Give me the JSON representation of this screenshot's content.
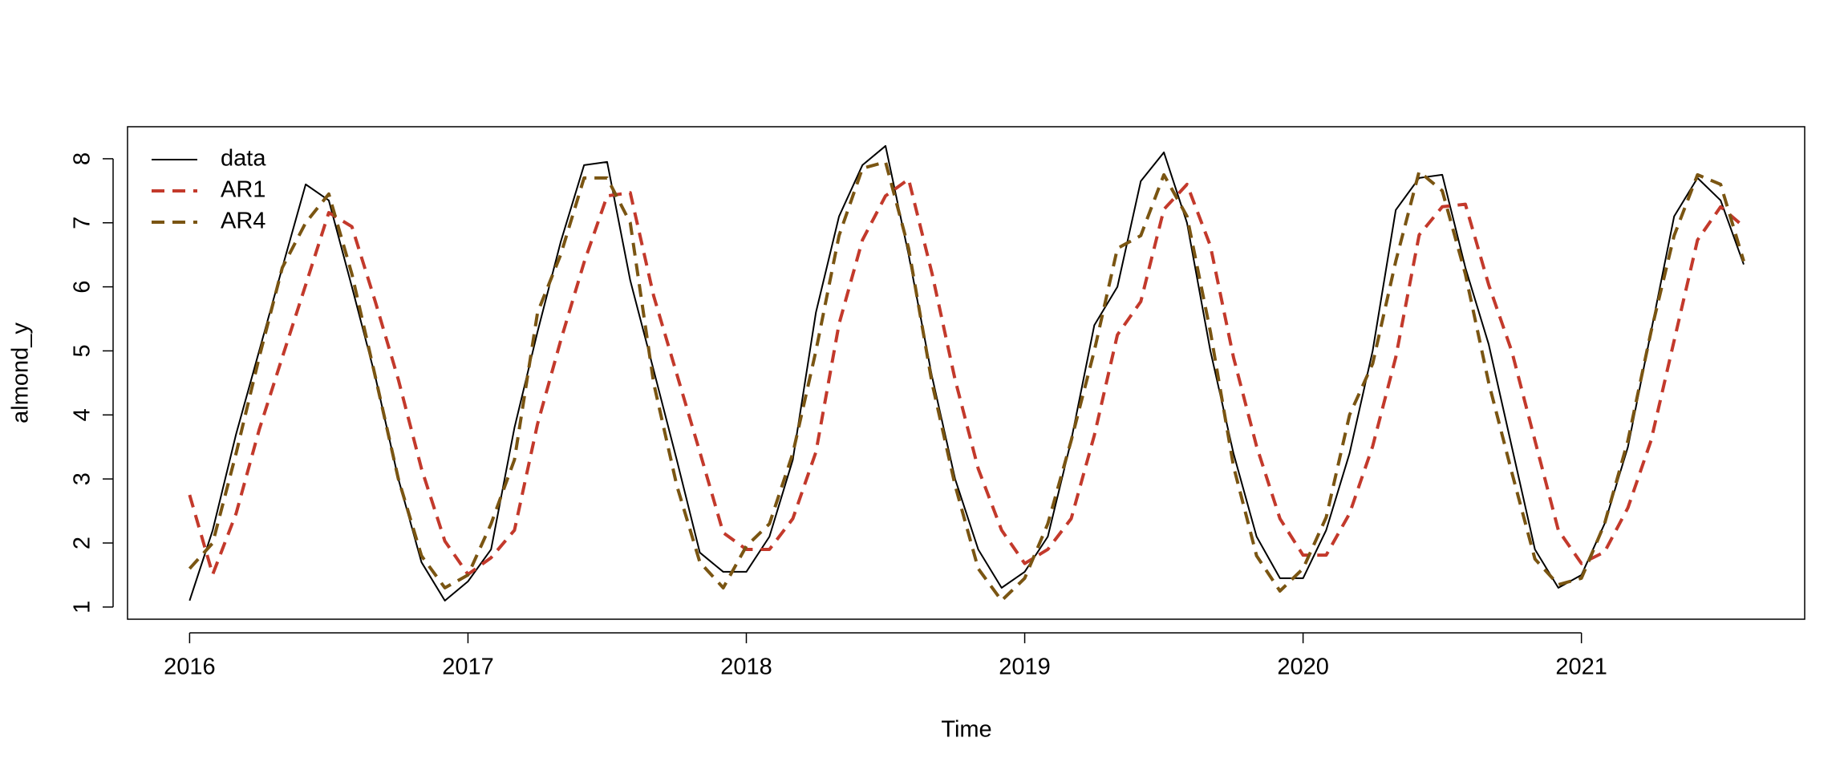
{
  "chart_data": {
    "type": "line",
    "xlabel": "Time",
    "ylabel": "almond_y",
    "x": [
      2016,
      2016.083,
      2016.167,
      2016.25,
      2016.333,
      2016.417,
      2016.5,
      2016.583,
      2016.667,
      2016.75,
      2016.833,
      2016.917,
      2017,
      2017.083,
      2017.167,
      2017.25,
      2017.333,
      2017.417,
      2017.5,
      2017.583,
      2017.667,
      2017.75,
      2017.833,
      2017.917,
      2018,
      2018.083,
      2018.167,
      2018.25,
      2018.333,
      2018.417,
      2018.5,
      2018.583,
      2018.667,
      2018.75,
      2018.833,
      2018.917,
      2019,
      2019.083,
      2019.167,
      2019.25,
      2019.333,
      2019.417,
      2019.5,
      2019.583,
      2019.667,
      2019.75,
      2019.833,
      2019.917,
      2020,
      2020.083,
      2020.167,
      2020.25,
      2020.333,
      2020.417,
      2020.5,
      2020.583,
      2020.667,
      2020.75,
      2020.833,
      2020.917,
      2021,
      2021.083,
      2021.167,
      2021.25,
      2021.333,
      2021.417,
      2021.5,
      2021.583
    ],
    "series": [
      {
        "name": "data",
        "color": "#000000",
        "dash": false,
        "values": [
          1.1,
          2.2,
          3.7,
          5.0,
          6.3,
          7.6,
          7.35,
          6.0,
          4.6,
          3.0,
          1.7,
          1.1,
          1.4,
          1.9,
          3.8,
          5.3,
          6.7,
          7.9,
          7.95,
          6.1,
          4.7,
          3.3,
          1.85,
          1.55,
          1.55,
          2.1,
          3.3,
          5.6,
          7.1,
          7.9,
          8.2,
          6.5,
          4.6,
          3.0,
          1.9,
          1.3,
          1.55,
          2.1,
          3.6,
          5.4,
          6.0,
          7.65,
          8.1,
          7.0,
          5.0,
          3.4,
          2.1,
          1.45,
          1.45,
          2.2,
          3.4,
          5.0,
          7.2,
          7.7,
          7.75,
          6.3,
          5.1,
          3.5,
          1.9,
          1.3,
          1.5,
          2.3,
          3.5,
          5.3,
          7.1,
          7.7,
          7.35,
          6.35
        ]
      },
      {
        "name": "AR1",
        "color": "#c3392b",
        "dash": true,
        "values": [
          2.75,
          1.51,
          2.46,
          3.77,
          4.9,
          6.03,
          7.16,
          6.94,
          5.77,
          4.55,
          3.16,
          2.03,
          1.51,
          1.77,
          2.2,
          3.86,
          5.16,
          6.38,
          7.42,
          7.47,
          5.86,
          4.64,
          3.42,
          2.16,
          1.9,
          1.9,
          2.38,
          3.42,
          5.42,
          6.73,
          7.42,
          7.68,
          6.21,
          4.55,
          3.16,
          2.2,
          1.68,
          1.9,
          2.38,
          3.68,
          5.25,
          5.77,
          7.21,
          7.6,
          6.64,
          4.9,
          3.51,
          2.38,
          1.81,
          1.81,
          2.46,
          3.51,
          4.9,
          6.81,
          7.25,
          7.29,
          6.03,
          4.99,
          3.6,
          2.2,
          1.68,
          1.86,
          2.55,
          3.6,
          5.16,
          6.73,
          7.25,
          6.94
        ]
      },
      {
        "name": "AR4",
        "color": "#7a5512",
        "dash": true,
        "values": [
          1.6,
          2.0,
          3.4,
          4.9,
          6.3,
          7.0,
          7.45,
          6.2,
          4.6,
          3.0,
          1.8,
          1.3,
          1.5,
          2.3,
          3.3,
          5.6,
          6.5,
          7.7,
          7.7,
          7.0,
          4.5,
          2.9,
          1.7,
          1.3,
          1.95,
          2.3,
          3.4,
          5.0,
          6.8,
          7.85,
          7.95,
          6.6,
          4.5,
          2.9,
          1.6,
          1.1,
          1.45,
          2.3,
          3.6,
          5.0,
          6.6,
          6.8,
          7.75,
          7.1,
          5.3,
          3.2,
          1.8,
          1.25,
          1.6,
          2.4,
          4.0,
          4.8,
          6.4,
          7.8,
          7.5,
          6.2,
          4.5,
          3.1,
          1.75,
          1.35,
          1.45,
          2.3,
          3.6,
          5.3,
          6.8,
          7.75,
          7.6,
          6.4
        ]
      }
    ],
    "xlim": [
      2015.777,
      2021.802
    ],
    "ylim": [
      0.81,
      8.5
    ],
    "xticks": [
      2016,
      2017,
      2018,
      2019,
      2020,
      2021
    ],
    "yticks": [
      1,
      2,
      3,
      4,
      5,
      6,
      7,
      8
    ],
    "legend": "top-left",
    "grid": false
  }
}
